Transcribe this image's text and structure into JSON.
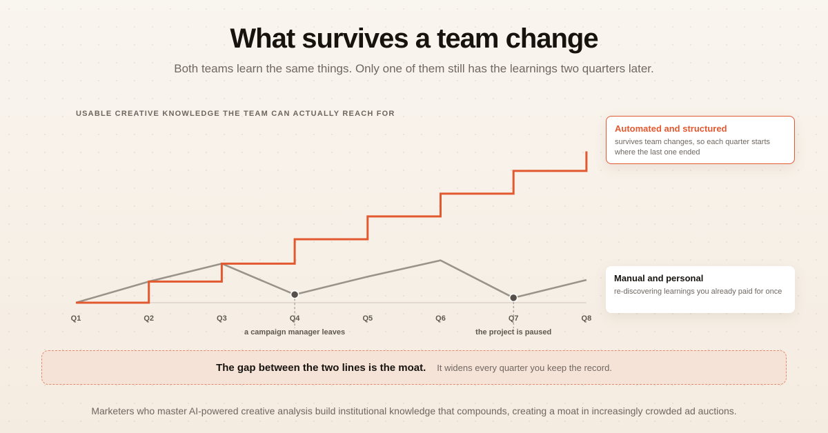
{
  "header": {
    "title": "What survives a team change",
    "subtitle": "Both teams learn the same things. Only one of them still has the learnings two quarters later."
  },
  "chart_data": {
    "type": "line",
    "title": "",
    "xlabel": "",
    "ylabel": "USABLE CREATIVE KNOWLEDGE THE TEAM CAN ACTUALLY REACH FOR",
    "categories": [
      "Q1",
      "Q2",
      "Q3",
      "Q4",
      "Q5",
      "Q6",
      "Q7",
      "Q8"
    ],
    "ylim": [
      0,
      100
    ],
    "grid": false,
    "series": [
      {
        "name": "Automated and structured",
        "description": "survives team changes, so each quarter starts where the last one ended",
        "style": "step",
        "color": "#e2582f",
        "values": [
          0,
          13,
          24,
          39,
          53,
          67,
          81,
          93
        ]
      },
      {
        "name": "Manual and personal",
        "description": "re-discovering learnings you already paid for once",
        "style": "line",
        "color": "#9a938a",
        "values": [
          0,
          13,
          24,
          5,
          16,
          26,
          3,
          14
        ]
      }
    ],
    "annotations": [
      {
        "x": "Q4",
        "series": 1,
        "text": "a campaign manager leaves"
      },
      {
        "x": "Q7",
        "series": 1,
        "text": "the project is paused"
      }
    ]
  },
  "callout": {
    "strong": "The gap between the two lines is the moat.",
    "note": "It widens every quarter you keep the record."
  },
  "footer": {
    "text": "Marketers who master AI-powered creative analysis build institutional knowledge that compounds, creating a moat in increasingly crowded ad auctions."
  },
  "colors": {
    "accent": "#e2582f",
    "neutral_line": "#9a938a",
    "baseline": "#dcd3c9",
    "text_dark": "#17140f",
    "text_muted": "#6f6760"
  }
}
